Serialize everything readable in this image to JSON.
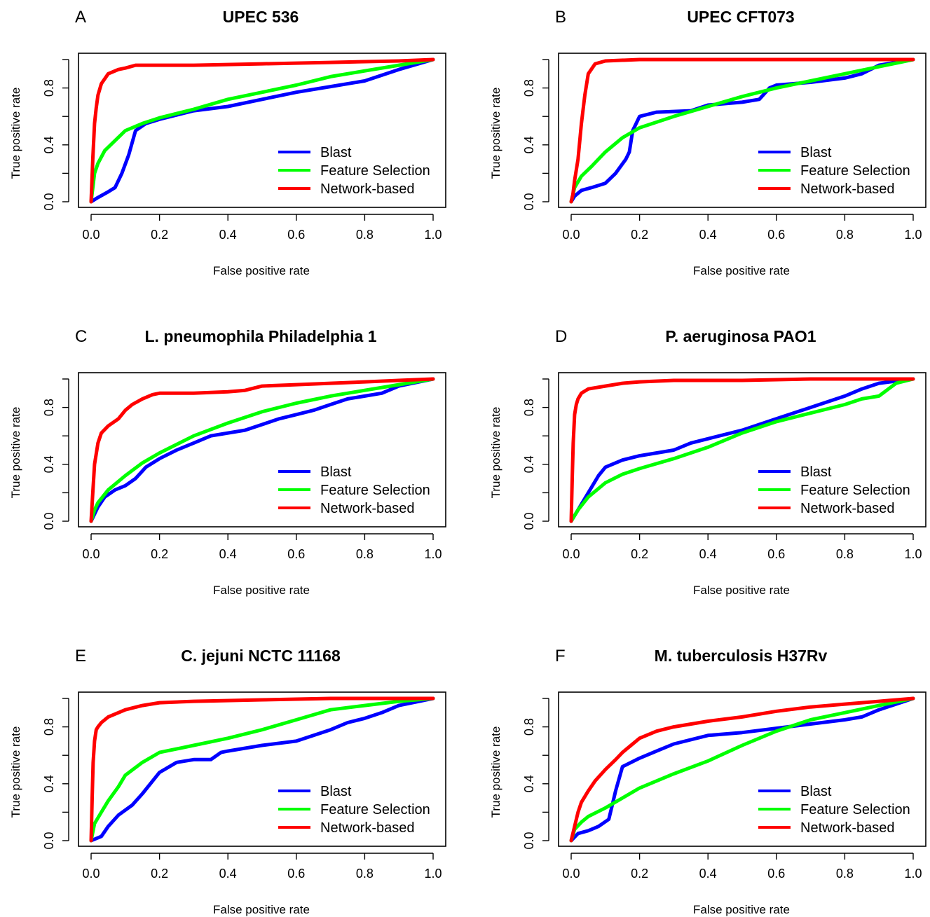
{
  "chart_data": [
    {
      "panel": "A",
      "title": "UPEC 536",
      "type": "line",
      "xlabel": "False positive rate",
      "ylabel": "True positive rate",
      "xlim": [
        0,
        1
      ],
      "ylim": [
        0,
        1
      ],
      "xticks": [
        "0.0",
        "0.2",
        "0.4",
        "0.6",
        "0.8",
        "1.0"
      ],
      "yticks": [
        "0.0",
        "0.4",
        "0.8"
      ],
      "legend_position": "bottom-right",
      "series": [
        {
          "name": "Blast",
          "color": "#0000ff",
          "x": [
            0,
            0.02,
            0.05,
            0.07,
            0.09,
            0.11,
            0.13,
            0.16,
            0.2,
            0.3,
            0.4,
            0.5,
            0.6,
            0.7,
            0.8,
            0.9,
            1.0
          ],
          "y": [
            0,
            0.03,
            0.07,
            0.1,
            0.2,
            0.33,
            0.5,
            0.55,
            0.58,
            0.64,
            0.67,
            0.72,
            0.77,
            0.81,
            0.85,
            0.93,
            1.0
          ]
        },
        {
          "name": "Feature Selection",
          "color": "#00ff00",
          "x": [
            0,
            0.01,
            0.02,
            0.04,
            0.07,
            0.1,
            0.15,
            0.2,
            0.3,
            0.4,
            0.5,
            0.6,
            0.7,
            0.8,
            0.9,
            1.0
          ],
          "y": [
            0,
            0.2,
            0.27,
            0.36,
            0.43,
            0.5,
            0.55,
            0.59,
            0.65,
            0.72,
            0.77,
            0.82,
            0.88,
            0.92,
            0.96,
            1.0
          ]
        },
        {
          "name": "Network-based",
          "color": "#ff0000",
          "x": [
            0,
            0.005,
            0.01,
            0.015,
            0.02,
            0.03,
            0.05,
            0.08,
            0.1,
            0.13,
            0.2,
            0.3,
            0.4,
            0.5,
            0.6,
            0.7,
            0.8,
            0.9,
            1.0
          ],
          "y": [
            0,
            0.3,
            0.55,
            0.66,
            0.75,
            0.83,
            0.9,
            0.93,
            0.94,
            0.96,
            0.96,
            0.96,
            0.965,
            0.97,
            0.975,
            0.98,
            0.985,
            0.99,
            1.0
          ]
        }
      ]
    },
    {
      "panel": "B",
      "title": "UPEC CFT073",
      "type": "line",
      "xlabel": "False positive rate",
      "ylabel": "True positive rate",
      "xlim": [
        0,
        1
      ],
      "ylim": [
        0,
        1
      ],
      "xticks": [
        "0.0",
        "0.2",
        "0.4",
        "0.6",
        "0.8",
        "1.0"
      ],
      "yticks": [
        "0.0",
        "0.4",
        "0.8"
      ],
      "legend_position": "bottom-right",
      "series": [
        {
          "name": "Blast",
          "color": "#0000ff",
          "x": [
            0,
            0.01,
            0.03,
            0.06,
            0.1,
            0.13,
            0.16,
            0.17,
            0.18,
            0.2,
            0.25,
            0.35,
            0.4,
            0.5,
            0.55,
            0.58,
            0.6,
            0.7,
            0.8,
            0.85,
            0.9,
            1.0
          ],
          "y": [
            0,
            0.04,
            0.08,
            0.1,
            0.13,
            0.2,
            0.3,
            0.35,
            0.5,
            0.6,
            0.63,
            0.64,
            0.68,
            0.7,
            0.72,
            0.8,
            0.82,
            0.84,
            0.87,
            0.9,
            0.96,
            1.0
          ]
        },
        {
          "name": "Feature Selection",
          "color": "#00ff00",
          "x": [
            0,
            0.01,
            0.03,
            0.06,
            0.1,
            0.15,
            0.2,
            0.3,
            0.4,
            0.5,
            0.6,
            0.7,
            0.8,
            0.9,
            1.0
          ],
          "y": [
            0,
            0.1,
            0.18,
            0.25,
            0.35,
            0.45,
            0.52,
            0.6,
            0.67,
            0.74,
            0.8,
            0.85,
            0.9,
            0.95,
            1.0
          ]
        },
        {
          "name": "Network-based",
          "color": "#ff0000",
          "x": [
            0,
            0.005,
            0.01,
            0.02,
            0.03,
            0.04,
            0.05,
            0.07,
            0.1,
            0.2,
            0.4,
            0.6,
            0.8,
            1.0
          ],
          "y": [
            0,
            0.05,
            0.15,
            0.3,
            0.55,
            0.75,
            0.9,
            0.97,
            0.99,
            1.0,
            1.0,
            1.0,
            1.0,
            1.0
          ]
        }
      ]
    },
    {
      "panel": "C",
      "title": "L. pneumophila Philadelphia 1",
      "type": "line",
      "xlabel": "False positive rate",
      "ylabel": "True positive rate",
      "xlim": [
        0,
        1
      ],
      "ylim": [
        0,
        1
      ],
      "xticks": [
        "0.0",
        "0.2",
        "0.4",
        "0.6",
        "0.8",
        "1.0"
      ],
      "yticks": [
        "0.0",
        "0.4",
        "0.8"
      ],
      "legend_position": "bottom-right",
      "series": [
        {
          "name": "Blast",
          "color": "#0000ff",
          "x": [
            0,
            0.02,
            0.04,
            0.07,
            0.1,
            0.13,
            0.16,
            0.2,
            0.25,
            0.3,
            0.35,
            0.4,
            0.45,
            0.5,
            0.55,
            0.6,
            0.65,
            0.7,
            0.75,
            0.8,
            0.85,
            0.9,
            1.0
          ],
          "y": [
            0,
            0.1,
            0.17,
            0.22,
            0.25,
            0.3,
            0.38,
            0.44,
            0.5,
            0.55,
            0.6,
            0.62,
            0.64,
            0.68,
            0.72,
            0.75,
            0.78,
            0.82,
            0.86,
            0.88,
            0.9,
            0.95,
            1.0
          ]
        },
        {
          "name": "Feature Selection",
          "color": "#00ff00",
          "x": [
            0,
            0.01,
            0.02,
            0.05,
            0.1,
            0.15,
            0.2,
            0.3,
            0.4,
            0.5,
            0.6,
            0.7,
            0.8,
            0.9,
            1.0
          ],
          "y": [
            0,
            0.08,
            0.13,
            0.22,
            0.32,
            0.41,
            0.48,
            0.6,
            0.69,
            0.77,
            0.83,
            0.88,
            0.92,
            0.96,
            1.0
          ]
        },
        {
          "name": "Network-based",
          "color": "#ff0000",
          "x": [
            0,
            0.005,
            0.01,
            0.02,
            0.03,
            0.05,
            0.08,
            0.1,
            0.12,
            0.15,
            0.18,
            0.2,
            0.3,
            0.4,
            0.45,
            0.5,
            0.6,
            0.7,
            0.8,
            0.9,
            1.0
          ],
          "y": [
            0,
            0.2,
            0.4,
            0.55,
            0.62,
            0.67,
            0.72,
            0.78,
            0.82,
            0.86,
            0.89,
            0.9,
            0.9,
            0.91,
            0.92,
            0.95,
            0.96,
            0.97,
            0.98,
            0.99,
            1.0
          ]
        }
      ]
    },
    {
      "panel": "D",
      "title": "P. aeruginosa PAO1",
      "type": "line",
      "xlabel": "False positive rate",
      "ylabel": "True positive rate",
      "xlim": [
        0,
        1
      ],
      "ylim": [
        0,
        1
      ],
      "xticks": [
        "0.0",
        "0.2",
        "0.4",
        "0.6",
        "0.8",
        "1.0"
      ],
      "yticks": [
        "0.0",
        "0.4",
        "0.8"
      ],
      "legend_position": "bottom-right",
      "series": [
        {
          "name": "Blast",
          "color": "#0000ff",
          "x": [
            0,
            0.02,
            0.05,
            0.08,
            0.1,
            0.15,
            0.2,
            0.3,
            0.35,
            0.4,
            0.5,
            0.6,
            0.7,
            0.8,
            0.85,
            0.9,
            1.0
          ],
          "y": [
            0,
            0.08,
            0.2,
            0.32,
            0.38,
            0.43,
            0.46,
            0.5,
            0.55,
            0.58,
            0.64,
            0.72,
            0.8,
            0.88,
            0.93,
            0.97,
            1.0
          ]
        },
        {
          "name": "Feature Selection",
          "color": "#00ff00",
          "x": [
            0,
            0.02,
            0.05,
            0.1,
            0.15,
            0.2,
            0.3,
            0.4,
            0.5,
            0.6,
            0.7,
            0.8,
            0.85,
            0.9,
            0.95,
            1.0
          ],
          "y": [
            0,
            0.08,
            0.17,
            0.27,
            0.33,
            0.37,
            0.44,
            0.52,
            0.62,
            0.7,
            0.76,
            0.82,
            0.86,
            0.88,
            0.97,
            1.0
          ]
        },
        {
          "name": "Network-based",
          "color": "#ff0000",
          "x": [
            0,
            0.003,
            0.006,
            0.01,
            0.015,
            0.02,
            0.03,
            0.05,
            0.1,
            0.15,
            0.2,
            0.3,
            0.5,
            0.7,
            1.0
          ],
          "y": [
            0,
            0.3,
            0.55,
            0.75,
            0.82,
            0.86,
            0.9,
            0.93,
            0.95,
            0.97,
            0.98,
            0.99,
            0.99,
            1.0,
            1.0
          ]
        }
      ]
    },
    {
      "panel": "E",
      "title": "C. jejuni NCTC 11168",
      "type": "line",
      "xlabel": "False positive rate",
      "ylabel": "True positive rate",
      "xlim": [
        0,
        1
      ],
      "ylim": [
        0,
        1
      ],
      "xticks": [
        "0.0",
        "0.2",
        "0.4",
        "0.6",
        "0.8",
        "1.0"
      ],
      "yticks": [
        "0.0",
        "0.4",
        "0.8"
      ],
      "legend_position": "bottom-right",
      "series": [
        {
          "name": "Blast",
          "color": "#0000ff",
          "x": [
            0,
            0.03,
            0.05,
            0.08,
            0.12,
            0.15,
            0.2,
            0.25,
            0.3,
            0.35,
            0.38,
            0.4,
            0.5,
            0.6,
            0.7,
            0.75,
            0.8,
            0.85,
            0.9,
            1.0
          ],
          "y": [
            0,
            0.03,
            0.1,
            0.18,
            0.25,
            0.33,
            0.48,
            0.55,
            0.57,
            0.57,
            0.62,
            0.63,
            0.67,
            0.7,
            0.78,
            0.83,
            0.86,
            0.9,
            0.95,
            1.0
          ]
        },
        {
          "name": "Feature Selection",
          "color": "#00ff00",
          "x": [
            0,
            0.01,
            0.03,
            0.05,
            0.08,
            0.1,
            0.15,
            0.2,
            0.3,
            0.4,
            0.5,
            0.6,
            0.7,
            0.8,
            0.9,
            1.0
          ],
          "y": [
            0,
            0.12,
            0.2,
            0.28,
            0.38,
            0.46,
            0.55,
            0.62,
            0.67,
            0.72,
            0.78,
            0.85,
            0.92,
            0.95,
            0.98,
            1.0
          ]
        },
        {
          "name": "Network-based",
          "color": "#ff0000",
          "x": [
            0,
            0.003,
            0.006,
            0.01,
            0.015,
            0.02,
            0.03,
            0.05,
            0.08,
            0.1,
            0.15,
            0.2,
            0.3,
            0.5,
            0.7,
            1.0
          ],
          "y": [
            0,
            0.3,
            0.55,
            0.7,
            0.78,
            0.8,
            0.83,
            0.87,
            0.9,
            0.92,
            0.95,
            0.97,
            0.98,
            0.99,
            1.0,
            1.0
          ]
        }
      ]
    },
    {
      "panel": "F",
      "title": "M. tuberculosis H37Rv",
      "type": "line",
      "xlabel": "False positive rate",
      "ylabel": "True positive rate",
      "xlim": [
        0,
        1
      ],
      "ylim": [
        0,
        1
      ],
      "xticks": [
        "0.0",
        "0.2",
        "0.4",
        "0.6",
        "0.8",
        "1.0"
      ],
      "yticks": [
        "0.0",
        "0.4",
        "0.8"
      ],
      "legend_position": "bottom-right",
      "series": [
        {
          "name": "Blast",
          "color": "#0000ff",
          "x": [
            0,
            0.02,
            0.05,
            0.08,
            0.11,
            0.12,
            0.13,
            0.15,
            0.2,
            0.25,
            0.3,
            0.4,
            0.5,
            0.6,
            0.7,
            0.8,
            0.85,
            0.9,
            1.0
          ],
          "y": [
            0,
            0.05,
            0.07,
            0.1,
            0.15,
            0.25,
            0.35,
            0.52,
            0.58,
            0.63,
            0.68,
            0.74,
            0.76,
            0.79,
            0.82,
            0.85,
            0.87,
            0.92,
            1.0
          ]
        },
        {
          "name": "Feature Selection",
          "color": "#00ff00",
          "x": [
            0,
            0.01,
            0.03,
            0.05,
            0.1,
            0.15,
            0.2,
            0.3,
            0.4,
            0.5,
            0.6,
            0.7,
            0.8,
            0.9,
            1.0
          ],
          "y": [
            0,
            0.08,
            0.13,
            0.17,
            0.23,
            0.3,
            0.37,
            0.47,
            0.56,
            0.67,
            0.77,
            0.85,
            0.9,
            0.95,
            1.0
          ]
        },
        {
          "name": "Network-based",
          "color": "#ff0000",
          "x": [
            0,
            0.01,
            0.02,
            0.03,
            0.05,
            0.07,
            0.1,
            0.13,
            0.15,
            0.2,
            0.25,
            0.3,
            0.4,
            0.5,
            0.6,
            0.7,
            0.8,
            0.9,
            1.0
          ],
          "y": [
            0,
            0.1,
            0.2,
            0.27,
            0.35,
            0.42,
            0.5,
            0.57,
            0.62,
            0.72,
            0.77,
            0.8,
            0.84,
            0.87,
            0.91,
            0.94,
            0.96,
            0.98,
            1.0
          ]
        }
      ]
    }
  ]
}
